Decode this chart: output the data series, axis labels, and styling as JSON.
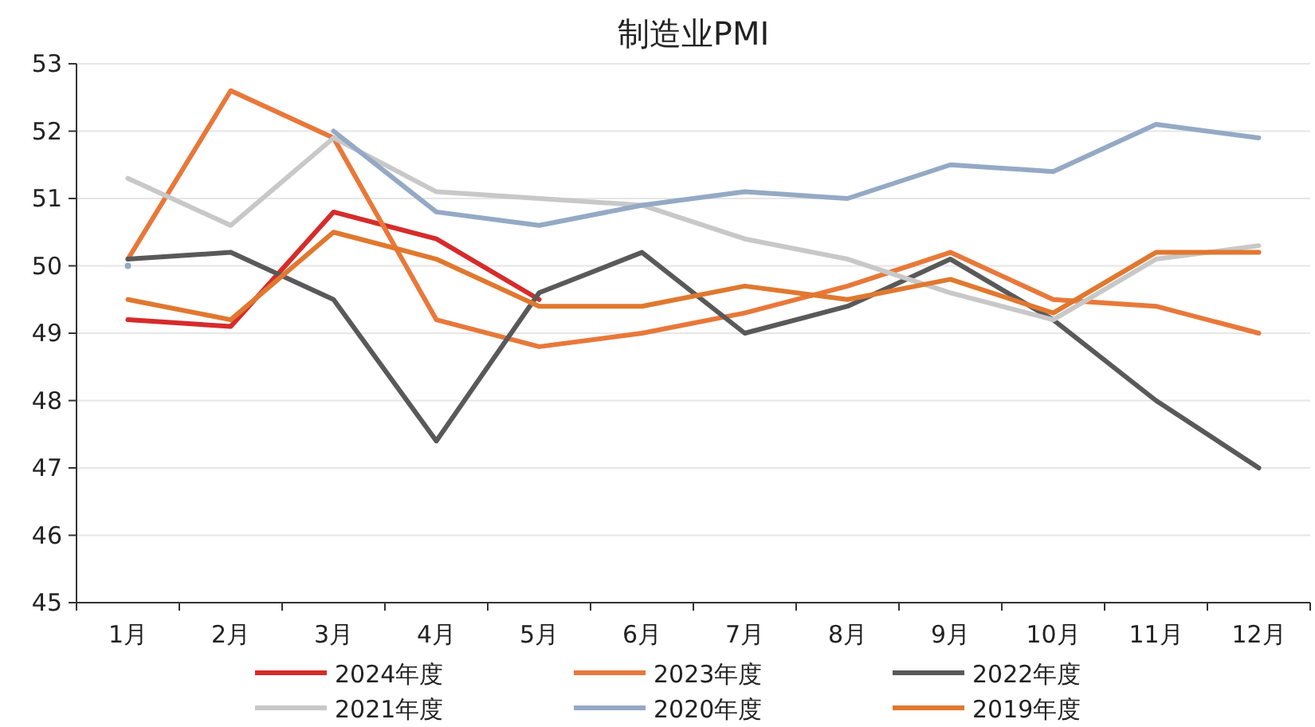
{
  "chart_data": {
    "type": "line",
    "title": "制造业PMI",
    "categories": [
      "1月",
      "2月",
      "3月",
      "4月",
      "5月",
      "6月",
      "7月",
      "8月",
      "9月",
      "10月",
      "11月",
      "12月"
    ],
    "series": [
      {
        "name": "2024年度",
        "color": "#d62b2b",
        "values": [
          49.2,
          49.1,
          50.8,
          50.4,
          49.5,
          null,
          null,
          null,
          null,
          null,
          null,
          null
        ]
      },
      {
        "name": "2023年度",
        "color": "#e8783a",
        "values": [
          50.1,
          52.6,
          51.9,
          49.2,
          48.8,
          49.0,
          49.3,
          49.7,
          50.2,
          49.5,
          49.4,
          49.0
        ]
      },
      {
        "name": "2022年度",
        "color": "#595959",
        "values": [
          50.1,
          50.2,
          49.5,
          47.4,
          49.6,
          50.2,
          49.0,
          49.4,
          50.1,
          49.2,
          48.0,
          47.0
        ]
      },
      {
        "name": "2021年度",
        "color": "#c8c8c8",
        "values": [
          51.3,
          50.6,
          51.9,
          51.1,
          51.0,
          50.9,
          50.4,
          50.1,
          49.6,
          49.2,
          50.1,
          50.3
        ]
      },
      {
        "name": "2020年度",
        "color": "#94a9c4",
        "values": [
          50.0,
          null,
          52.0,
          50.8,
          50.6,
          50.9,
          51.1,
          51.0,
          51.5,
          51.4,
          52.1,
          51.9
        ]
      },
      {
        "name": "2019年度",
        "color": "#e0782f",
        "values": [
          49.5,
          49.2,
          50.5,
          50.1,
          49.4,
          49.4,
          49.7,
          49.5,
          49.8,
          49.3,
          50.2,
          50.2
        ]
      }
    ],
    "ylim": [
      45,
      53
    ],
    "yticks": [
      45,
      46,
      47,
      48,
      49,
      50,
      51,
      52,
      53
    ],
    "grid": "y",
    "legend": "bottom",
    "line_style": "solid",
    "marker": "none"
  }
}
